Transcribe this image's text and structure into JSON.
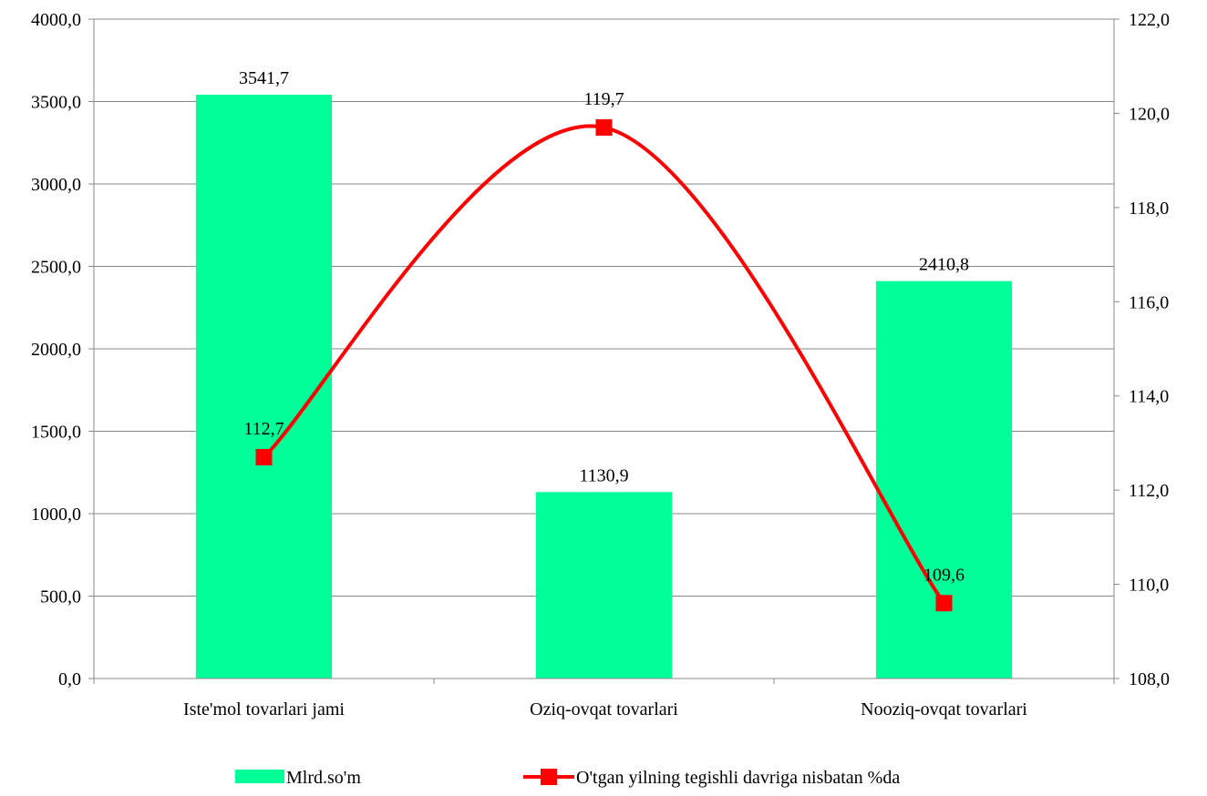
{
  "chart_data": {
    "type": "bar",
    "categories": [
      "Iste'mol tovarlari jami",
      "Oziq-ovqat tovarlari",
      "Nooziq-ovqat tovarlari"
    ],
    "series": [
      {
        "name": "Mlrd.so'm",
        "type": "bar",
        "axis": "left",
        "values": [
          3541.7,
          1130.9,
          2410.8
        ],
        "labels": [
          "3541,7",
          "1130,9",
          "2410,8"
        ],
        "color": "#00FF99"
      },
      {
        "name": "O'tgan yilning tegishli davriga nisbatan %da",
        "type": "line",
        "axis": "right",
        "values": [
          112.7,
          119.7,
          109.6
        ],
        "labels": [
          "112,7",
          "119,7",
          "109,6"
        ],
        "color": "#FF0000",
        "smooth": true
      }
    ],
    "y_left": {
      "ylim": [
        0,
        4000
      ],
      "ticks": [
        "0,0",
        "500,0",
        "1000,0",
        "1500,0",
        "2000,0",
        "2500,0",
        "3000,0",
        "3500,0",
        "4000,0"
      ]
    },
    "y_right": {
      "ylim": [
        108,
        122
      ],
      "ticks": [
        "108,0",
        "110,0",
        "112,0",
        "114,0",
        "116,0",
        "118,0",
        "120,0",
        "122,0"
      ]
    },
    "grid": true,
    "legend": "bottom",
    "title": "",
    "xlabel": "",
    "ylabel": ""
  }
}
